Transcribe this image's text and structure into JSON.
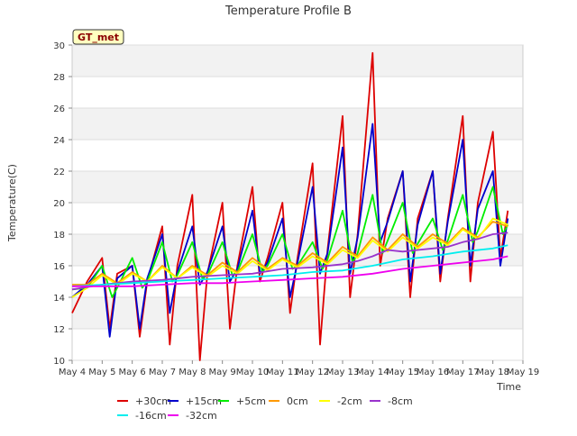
{
  "chart_data": {
    "type": "line",
    "title": "Temperature Profile B",
    "xlabel": "Time",
    "ylabel": "Temperature(C)",
    "ylim": [
      10,
      30
    ],
    "yticks": [
      10,
      12,
      14,
      16,
      18,
      20,
      22,
      24,
      26,
      28,
      30
    ],
    "xlim": [
      "2024-05-04",
      "2024-05-19"
    ],
    "xticks": [
      "May 4",
      "May 5",
      "May 6",
      "May 7",
      "May 8",
      "May 9",
      "May 10",
      "May 11",
      "May 12",
      "May 13",
      "May 14",
      "May 15",
      "May 16",
      "May 17",
      "May 18",
      "May 19"
    ],
    "grid": true,
    "legend_position": "bottom",
    "annotation": "GT_met",
    "series": [
      {
        "name": "+30cm",
        "color": "#dd0000",
        "points": [
          [
            "2024-05-04",
            13.0
          ],
          [
            "2024-05-04T12:00",
            15.0
          ],
          [
            "2024-05-05",
            16.5
          ],
          [
            "2024-05-05T06:00",
            12.0
          ],
          [
            "2024-05-05T12:00",
            15.5
          ],
          [
            "2024-05-06",
            16.0
          ],
          [
            "2024-05-06T06:00",
            11.5
          ],
          [
            "2024-05-06T12:00",
            15.0
          ],
          [
            "2024-05-07",
            18.5
          ],
          [
            "2024-05-07T06:00",
            11.0
          ],
          [
            "2024-05-07T12:00",
            16.0
          ],
          [
            "2024-05-08",
            20.5
          ],
          [
            "2024-05-08T06:00",
            10.0
          ],
          [
            "2024-05-08T12:00",
            15.5
          ],
          [
            "2024-05-09",
            20.0
          ],
          [
            "2024-05-09T06:00",
            12.0
          ],
          [
            "2024-05-09T12:00",
            16.0
          ],
          [
            "2024-05-10",
            21.0
          ],
          [
            "2024-05-10T06:00",
            15.0
          ],
          [
            "2024-05-10T12:00",
            16.5
          ],
          [
            "2024-05-11",
            20.0
          ],
          [
            "2024-05-11T06:00",
            13.0
          ],
          [
            "2024-05-11T12:00",
            16.5
          ],
          [
            "2024-05-12",
            22.5
          ],
          [
            "2024-05-12T06:00",
            11.0
          ],
          [
            "2024-05-12T12:00",
            17.0
          ],
          [
            "2024-05-13",
            25.5
          ],
          [
            "2024-05-13T06:00",
            14.0
          ],
          [
            "2024-05-13T12:00",
            18.0
          ],
          [
            "2024-05-14",
            29.5
          ],
          [
            "2024-05-14T06:00",
            16.0
          ],
          [
            "2024-05-14T12:00",
            19.0
          ],
          [
            "2024-05-15",
            22.0
          ],
          [
            "2024-05-15T06:00",
            14.0
          ],
          [
            "2024-05-15T12:00",
            19.0
          ],
          [
            "2024-05-16",
            22.0
          ],
          [
            "2024-05-16T06:00",
            15.0
          ],
          [
            "2024-05-16T12:00",
            19.0
          ],
          [
            "2024-05-17",
            25.5
          ],
          [
            "2024-05-17T06:00",
            15.0
          ],
          [
            "2024-05-17T12:00",
            20.0
          ],
          [
            "2024-05-18",
            24.5
          ],
          [
            "2024-05-18T06:00",
            16.5
          ],
          [
            "2024-05-18T12:00",
            19.5
          ]
        ]
      },
      {
        "name": "+15cm",
        "color": "#0000cc",
        "points": [
          [
            "2024-05-04",
            14.0
          ],
          [
            "2024-05-04T12:00",
            14.8
          ],
          [
            "2024-05-05",
            16.0
          ],
          [
            "2024-05-05T06:00",
            11.5
          ],
          [
            "2024-05-05T12:00",
            15.2
          ],
          [
            "2024-05-06",
            16.0
          ],
          [
            "2024-05-06T06:00",
            12.0
          ],
          [
            "2024-05-06T12:00",
            15.2
          ],
          [
            "2024-05-07",
            18.0
          ],
          [
            "2024-05-07T06:00",
            13.0
          ],
          [
            "2024-05-07T12:00",
            15.6
          ],
          [
            "2024-05-08",
            18.5
          ],
          [
            "2024-05-08T06:00",
            14.8
          ],
          [
            "2024-05-08T12:00",
            15.6
          ],
          [
            "2024-05-09",
            18.5
          ],
          [
            "2024-05-09T06:00",
            15.0
          ],
          [
            "2024-05-09T12:00",
            15.8
          ],
          [
            "2024-05-10",
            19.5
          ],
          [
            "2024-05-10T06:00",
            15.5
          ],
          [
            "2024-05-10T12:00",
            16.2
          ],
          [
            "2024-05-11",
            19.0
          ],
          [
            "2024-05-11T06:00",
            14.0
          ],
          [
            "2024-05-11T12:00",
            16.2
          ],
          [
            "2024-05-12",
            21.0
          ],
          [
            "2024-05-12T06:00",
            15.5
          ],
          [
            "2024-05-12T12:00",
            16.8
          ],
          [
            "2024-05-13",
            23.5
          ],
          [
            "2024-05-13T06:00",
            15.5
          ],
          [
            "2024-05-13T12:00",
            17.8
          ],
          [
            "2024-05-14",
            25.0
          ],
          [
            "2024-05-14T06:00",
            17.5
          ],
          [
            "2024-05-14T12:00",
            18.8
          ],
          [
            "2024-05-15",
            22.0
          ],
          [
            "2024-05-15T06:00",
            15.0
          ],
          [
            "2024-05-15T12:00",
            18.6
          ],
          [
            "2024-05-16",
            22.0
          ],
          [
            "2024-05-16T06:00",
            15.5
          ],
          [
            "2024-05-16T12:00",
            18.8
          ],
          [
            "2024-05-17",
            24.0
          ],
          [
            "2024-05-17T06:00",
            16.0
          ],
          [
            "2024-05-17T12:00",
            19.6
          ],
          [
            "2024-05-18",
            22.0
          ],
          [
            "2024-05-18T06:00",
            16.0
          ],
          [
            "2024-05-18T12:00",
            19.0
          ]
        ]
      },
      {
        "name": "+5cm",
        "color": "#00ee00",
        "points": [
          [
            "2024-05-04",
            14.5
          ],
          [
            "2024-05-04T12:00",
            14.6
          ],
          [
            "2024-05-05",
            16.0
          ],
          [
            "2024-05-05T08:00",
            14.0
          ],
          [
            "2024-05-05T12:00",
            14.6
          ],
          [
            "2024-05-06",
            16.5
          ],
          [
            "2024-05-06T08:00",
            14.6
          ],
          [
            "2024-05-06T12:00",
            15.0
          ],
          [
            "2024-05-07",
            17.5
          ],
          [
            "2024-05-07T08:00",
            15.0
          ],
          [
            "2024-05-07T12:00",
            15.4
          ],
          [
            "2024-05-08",
            17.5
          ],
          [
            "2024-05-08T08:00",
            15.2
          ],
          [
            "2024-05-08T12:00",
            15.4
          ],
          [
            "2024-05-09",
            17.5
          ],
          [
            "2024-05-09T08:00",
            15.4
          ],
          [
            "2024-05-09T12:00",
            15.6
          ],
          [
            "2024-05-10",
            18.0
          ],
          [
            "2024-05-10T08:00",
            15.6
          ],
          [
            "2024-05-10T12:00",
            16.0
          ],
          [
            "2024-05-11",
            18.0
          ],
          [
            "2024-05-11T08:00",
            15.8
          ],
          [
            "2024-05-11T12:00",
            16.0
          ],
          [
            "2024-05-12",
            17.5
          ],
          [
            "2024-05-12T08:00",
            15.8
          ],
          [
            "2024-05-12T12:00",
            16.4
          ],
          [
            "2024-05-13",
            19.5
          ],
          [
            "2024-05-13T08:00",
            16.2
          ],
          [
            "2024-05-13T12:00",
            16.8
          ],
          [
            "2024-05-14",
            20.5
          ],
          [
            "2024-05-14T08:00",
            16.8
          ],
          [
            "2024-05-14T12:00",
            17.6
          ],
          [
            "2024-05-15",
            20.0
          ],
          [
            "2024-05-15T08:00",
            16.8
          ],
          [
            "2024-05-15T12:00",
            17.4
          ],
          [
            "2024-05-16",
            19.0
          ],
          [
            "2024-05-16T08:00",
            17.0
          ],
          [
            "2024-05-16T12:00",
            17.6
          ],
          [
            "2024-05-17",
            20.5
          ],
          [
            "2024-05-17T08:00",
            17.5
          ],
          [
            "2024-05-17T12:00",
            18.2
          ],
          [
            "2024-05-18",
            21.0
          ],
          [
            "2024-05-18T08:00",
            18.0
          ],
          [
            "2024-05-18T12:00",
            18.6
          ]
        ]
      },
      {
        "name": "0cm",
        "color": "#ff9900",
        "points": [
          [
            "2024-05-04",
            14.8
          ],
          [
            "2024-05-04T12:00",
            14.8
          ],
          [
            "2024-05-05",
            15.5
          ],
          [
            "2024-05-05T12:00",
            14.9
          ],
          [
            "2024-05-06",
            15.6
          ],
          [
            "2024-05-06T12:00",
            15.0
          ],
          [
            "2024-05-07",
            16.0
          ],
          [
            "2024-05-07T12:00",
            15.2
          ],
          [
            "2024-05-08",
            16.0
          ],
          [
            "2024-05-08T12:00",
            15.4
          ],
          [
            "2024-05-09",
            16.2
          ],
          [
            "2024-05-09T12:00",
            15.6
          ],
          [
            "2024-05-10",
            16.5
          ],
          [
            "2024-05-10T12:00",
            15.8
          ],
          [
            "2024-05-11",
            16.5
          ],
          [
            "2024-05-11T12:00",
            16.0
          ],
          [
            "2024-05-12",
            16.8
          ],
          [
            "2024-05-12T12:00",
            16.2
          ],
          [
            "2024-05-13",
            17.2
          ],
          [
            "2024-05-13T12:00",
            16.6
          ],
          [
            "2024-05-14",
            17.8
          ],
          [
            "2024-05-14T12:00",
            17.0
          ],
          [
            "2024-05-15",
            18.0
          ],
          [
            "2024-05-15T12:00",
            17.2
          ],
          [
            "2024-05-16",
            18.0
          ],
          [
            "2024-05-16T12:00",
            17.4
          ],
          [
            "2024-05-17",
            18.4
          ],
          [
            "2024-05-17T12:00",
            17.8
          ],
          [
            "2024-05-18",
            18.8
          ],
          [
            "2024-05-18T12:00",
            18.5
          ]
        ]
      },
      {
        "name": "-2cm",
        "color": "#ffff00",
        "points": [
          [
            "2024-05-04",
            14.0
          ],
          [
            "2024-05-04T12:00",
            14.6
          ],
          [
            "2024-05-05",
            15.4
          ],
          [
            "2024-05-05T12:00",
            14.8
          ],
          [
            "2024-05-06",
            15.5
          ],
          [
            "2024-05-06T12:00",
            15.0
          ],
          [
            "2024-05-07",
            15.9
          ],
          [
            "2024-05-07T12:00",
            15.2
          ],
          [
            "2024-05-08",
            15.9
          ],
          [
            "2024-05-08T12:00",
            15.3
          ],
          [
            "2024-05-09",
            16.0
          ],
          [
            "2024-05-09T12:00",
            15.5
          ],
          [
            "2024-05-10",
            16.3
          ],
          [
            "2024-05-10T12:00",
            15.7
          ],
          [
            "2024-05-11",
            16.4
          ],
          [
            "2024-05-11T12:00",
            15.9
          ],
          [
            "2024-05-12",
            16.6
          ],
          [
            "2024-05-12T12:00",
            16.1
          ],
          [
            "2024-05-13",
            17.0
          ],
          [
            "2024-05-13T12:00",
            16.5
          ],
          [
            "2024-05-14",
            17.6
          ],
          [
            "2024-05-14T12:00",
            16.9
          ],
          [
            "2024-05-15",
            17.8
          ],
          [
            "2024-05-15T12:00",
            17.1
          ],
          [
            "2024-05-16",
            17.8
          ],
          [
            "2024-05-16T12:00",
            17.3
          ],
          [
            "2024-05-17",
            18.3
          ],
          [
            "2024-05-17T12:00",
            17.7
          ],
          [
            "2024-05-18",
            19.0
          ],
          [
            "2024-05-18T12:00",
            18.6
          ]
        ]
      },
      {
        "name": "-8cm",
        "color": "#9933cc",
        "points": [
          [
            "2024-05-04",
            14.5
          ],
          [
            "2024-05-05",
            14.8
          ],
          [
            "2024-05-06",
            15.0
          ],
          [
            "2024-05-07",
            15.1
          ],
          [
            "2024-05-08",
            15.3
          ],
          [
            "2024-05-09",
            15.4
          ],
          [
            "2024-05-10",
            15.5
          ],
          [
            "2024-05-11",
            15.8
          ],
          [
            "2024-05-12",
            15.9
          ],
          [
            "2024-05-13",
            16.1
          ],
          [
            "2024-05-13T12:00",
            16.3
          ],
          [
            "2024-05-14",
            16.6
          ],
          [
            "2024-05-14T12:00",
            17.0
          ],
          [
            "2024-05-15",
            16.9
          ],
          [
            "2024-05-15T12:00",
            17.0
          ],
          [
            "2024-05-16",
            17.1
          ],
          [
            "2024-05-16T12:00",
            17.2
          ],
          [
            "2024-05-17",
            17.5
          ],
          [
            "2024-05-17T12:00",
            17.7
          ],
          [
            "2024-05-18",
            18.0
          ],
          [
            "2024-05-18T12:00",
            18.1
          ]
        ]
      },
      {
        "name": "-16cm",
        "color": "#00eeee",
        "points": [
          [
            "2024-05-04",
            14.7
          ],
          [
            "2024-05-05",
            14.8
          ],
          [
            "2024-05-06",
            14.9
          ],
          [
            "2024-05-07",
            15.0
          ],
          [
            "2024-05-08",
            15.1
          ],
          [
            "2024-05-09",
            15.2
          ],
          [
            "2024-05-10",
            15.3
          ],
          [
            "2024-05-11",
            15.4
          ],
          [
            "2024-05-12",
            15.6
          ],
          [
            "2024-05-13",
            15.7
          ],
          [
            "2024-05-14",
            16.0
          ],
          [
            "2024-05-15",
            16.4
          ],
          [
            "2024-05-16",
            16.6
          ],
          [
            "2024-05-17",
            16.9
          ],
          [
            "2024-05-18",
            17.1
          ],
          [
            "2024-05-18T12:00",
            17.3
          ]
        ]
      },
      {
        "name": "-32cm",
        "color": "#ee00ee",
        "points": [
          [
            "2024-05-04",
            14.7
          ],
          [
            "2024-05-05",
            14.7
          ],
          [
            "2024-05-06",
            14.7
          ],
          [
            "2024-05-07",
            14.8
          ],
          [
            "2024-05-08",
            14.9
          ],
          [
            "2024-05-09",
            14.9
          ],
          [
            "2024-05-10",
            15.0
          ],
          [
            "2024-05-11",
            15.1
          ],
          [
            "2024-05-12",
            15.2
          ],
          [
            "2024-05-13",
            15.3
          ],
          [
            "2024-05-14",
            15.5
          ],
          [
            "2024-05-15",
            15.8
          ],
          [
            "2024-05-16",
            16.0
          ],
          [
            "2024-05-17",
            16.2
          ],
          [
            "2024-05-18",
            16.4
          ],
          [
            "2024-05-18T12:00",
            16.6
          ]
        ]
      }
    ]
  }
}
